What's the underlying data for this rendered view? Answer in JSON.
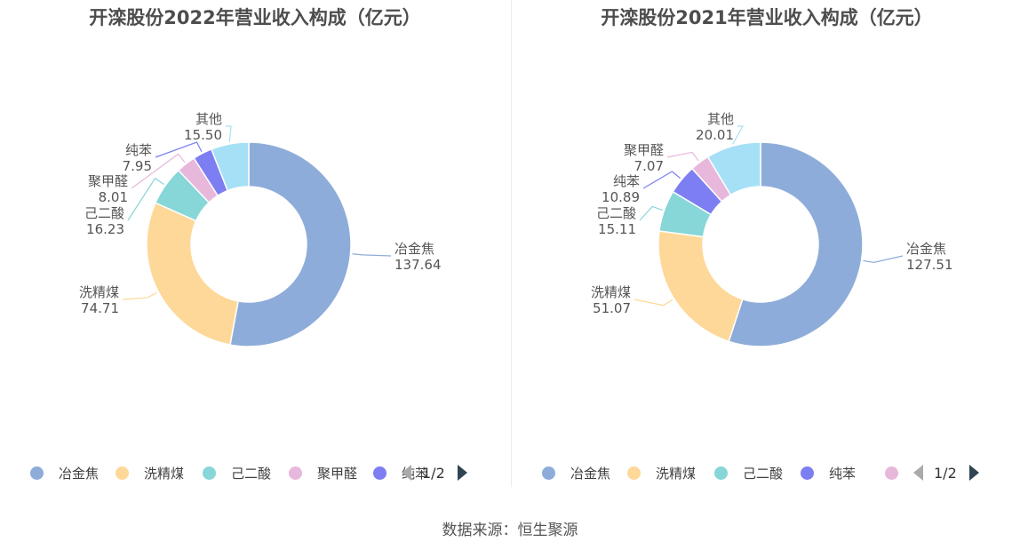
{
  "chart_data": [
    {
      "type": "pie",
      "title": "开滦股份2022年营业收入构成（亿元）",
      "categories": [
        "冶金焦",
        "洗精煤",
        "己二酸",
        "聚甲醛",
        "纯苯",
        "其他"
      ],
      "values": [
        137.64,
        74.71,
        16.23,
        8.01,
        7.95,
        15.5
      ],
      "value_labels": [
        "137.64",
        "74.71",
        "16.23",
        "8.01",
        "7.95",
        "15.50"
      ],
      "colors": [
        "#8eacd9",
        "#fed898",
        "#87d6d8",
        "#e8b7dc",
        "#7c7ef2",
        "#a6e0f6"
      ],
      "legend": {
        "items": [
          "冶金焦",
          "洗精煤",
          "己二酸",
          "聚甲醛",
          "纯苯"
        ],
        "colors": [
          "#8eacd9",
          "#fed898",
          "#87d6d8",
          "#e8b7dc",
          "#7c7ef2"
        ],
        "page": "1/2",
        "placement": "bottom"
      }
    },
    {
      "type": "pie",
      "title": "开滦股份2021年营业收入构成（亿元）",
      "categories": [
        "冶金焦",
        "洗精煤",
        "己二酸",
        "纯苯",
        "聚甲醛",
        "其他"
      ],
      "values": [
        127.51,
        51.07,
        15.11,
        10.89,
        7.07,
        20.01
      ],
      "value_labels": [
        "127.51",
        "51.07",
        "15.11",
        "10.89",
        "7.07",
        "20.01"
      ],
      "colors": [
        "#8eacd9",
        "#fed898",
        "#87d6d8",
        "#7c7ef2",
        "#e8b7dc",
        "#a6e0f6"
      ],
      "legend": {
        "items": [
          "冶金焦",
          "洗精煤",
          "己二酸",
          "纯苯",
          ""
        ],
        "colors": [
          "#8eacd9",
          "#fed898",
          "#87d6d8",
          "#7c7ef2",
          "#e8b7dc"
        ],
        "page": "1/2",
        "placement": "bottom"
      }
    }
  ],
  "source": "数据来源：恒生聚源"
}
